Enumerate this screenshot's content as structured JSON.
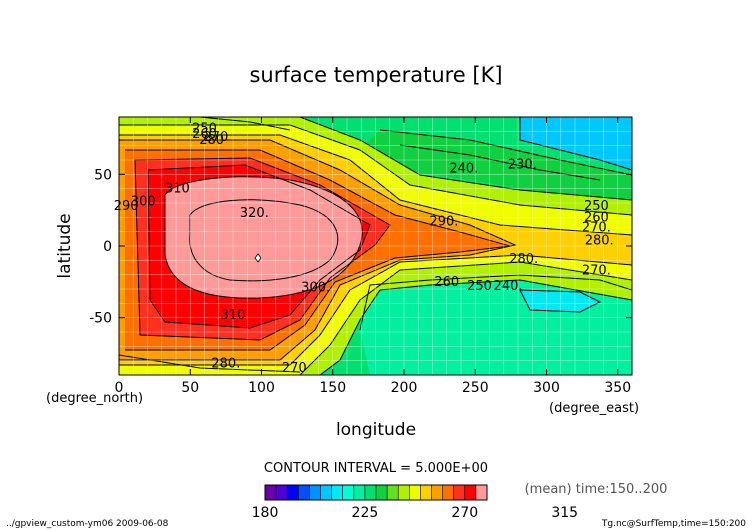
{
  "chart_data": {
    "type": "heatmap",
    "title": "surface temperature [K]",
    "xlabel": "longitude",
    "ylabel": "latitude",
    "x_unit_label": "(degree_east)",
    "y_unit_label": "(degree_north)",
    "xlim": [
      0,
      360
    ],
    "ylim": [
      -90,
      90
    ],
    "x_ticks": [
      0,
      50,
      100,
      150,
      200,
      250,
      300,
      350
    ],
    "y_ticks": [
      -50,
      0,
      50
    ],
    "grid": true,
    "contour_interval_text": "CONTOUR INTERVAL = 5.000E+00",
    "mean_text": "(mean) time:150..200",
    "colorbar": {
      "levels": [
        180,
        185,
        190,
        195,
        200,
        205,
        210,
        215,
        220,
        225,
        230,
        235,
        240,
        245,
        250,
        255,
        260,
        265,
        270,
        275,
        280,
        285,
        290,
        295,
        300,
        305,
        310,
        315,
        320
      ],
      "tick_labels": [
        180,
        225,
        270,
        315
      ],
      "colors": [
        "#6a00a8",
        "#4b00d8",
        "#0000ff",
        "#0050ff",
        "#0090ff",
        "#00c8ff",
        "#00e8f0",
        "#00ffd0",
        "#00f0a0",
        "#00e070",
        "#10d040",
        "#60e020",
        "#b0f000",
        "#f0ff00",
        "#ffd000",
        "#ffa000",
        "#ff7000",
        "#ff3020",
        "#ff0000",
        "#ff9a9a"
      ]
    },
    "contour_labels": [
      {
        "text": "250",
        "lon": 60,
        "lat": 82
      },
      {
        "text": "260",
        "lon": 60,
        "lat": 78
      },
      {
        "text": "270",
        "lon": 68,
        "lat": 76
      },
      {
        "text": "280",
        "lon": 65,
        "lat": 74
      },
      {
        "text": "290",
        "lon": 5,
        "lat": 28
      },
      {
        "text": "300",
        "lon": 17,
        "lat": 31
      },
      {
        "text": "310",
        "lon": 41,
        "lat": 40
      },
      {
        "text": "320.",
        "lon": 95,
        "lat": 23
      },
      {
        "text": "290.",
        "lon": 228,
        "lat": 17
      },
      {
        "text": "240.",
        "lon": 242,
        "lat": 54
      },
      {
        "text": "230.",
        "lon": 283,
        "lat": 57
      },
      {
        "text": "250",
        "lon": 335,
        "lat": 28
      },
      {
        "text": "260",
        "lon": 335,
        "lat": 20
      },
      {
        "text": "270.",
        "lon": 335,
        "lat": 13
      },
      {
        "text": "280.",
        "lon": 337,
        "lat": 4
      },
      {
        "text": "280.",
        "lon": 284,
        "lat": -9
      },
      {
        "text": "270.",
        "lon": 335,
        "lat": -17
      },
      {
        "text": "260",
        "lon": 230,
        "lat": -25
      },
      {
        "text": "250",
        "lon": 253,
        "lat": -28
      },
      {
        "text": "240.",
        "lon": 273,
        "lat": -28
      },
      {
        "text": "300.",
        "lon": 138,
        "lat": -29
      },
      {
        "text": "310",
        "lon": 80,
        "lat": -48
      },
      {
        "text": "280.",
        "lon": 75,
        "lat": -82
      },
      {
        "text": "270",
        "lon": 123,
        "lat": -85
      }
    ]
  },
  "footer": {
    "left": "../gpview_custom-ym06  2009-06-08",
    "right": "Tg.nc@SurfTemp,time=150:200"
  }
}
